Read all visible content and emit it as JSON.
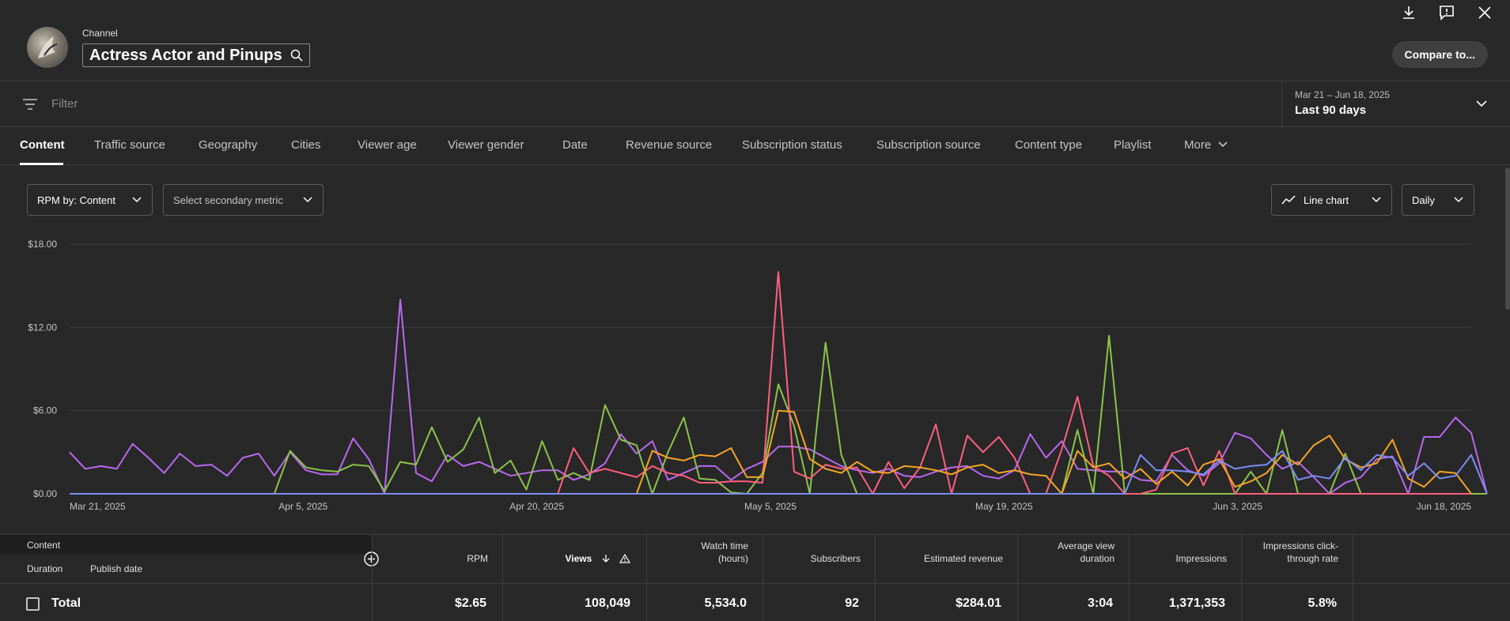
{
  "header": {
    "channel_label": "Channel",
    "channel_name": "Actress Actor and Pinups",
    "compare_button": "Compare to...",
    "icons": [
      "download-icon",
      "feedback-icon",
      "close-icon"
    ]
  },
  "filter": {
    "placeholder": "Filter",
    "date_range": "Mar 21 – Jun 18, 2025",
    "date_preset": "Last 90 days"
  },
  "tabs": [
    {
      "label": "Content",
      "active": true
    },
    {
      "label": "Traffic source"
    },
    {
      "label": "Geography"
    },
    {
      "label": "Cities"
    },
    {
      "label": "Viewer age"
    },
    {
      "label": "Viewer gender"
    },
    {
      "label": "Date"
    },
    {
      "label": "Revenue source"
    },
    {
      "label": "Subscription status"
    },
    {
      "label": "Subscription source"
    },
    {
      "label": "Content type"
    },
    {
      "label": "Playlist"
    },
    {
      "label": "More"
    }
  ],
  "controls": {
    "primary_metric": "RPM by: Content",
    "secondary_metric": "Select secondary metric",
    "chart_type": "Line chart",
    "granularity": "Daily"
  },
  "chart_data": {
    "type": "line",
    "x_tick_labels": [
      "Mar 21, 2025",
      "Apr 5, 2025",
      "Apr 20, 2025",
      "May 5, 2025",
      "May 19, 2025",
      "Jun 3, 2025",
      "Jun 18, 2025"
    ],
    "y_tick_labels": [
      "$0.00",
      "$6.00",
      "$12.00",
      "$18.00"
    ],
    "ylim": [
      0,
      18
    ],
    "grid": true,
    "num_days": 90,
    "series": [
      {
        "color": "#b968f0",
        "values": [
          3,
          1.8,
          2,
          1.8,
          3.6,
          2.6,
          1.5,
          2.9,
          2,
          2.1,
          1.3,
          2.6,
          2.9,
          1.3,
          3,
          1.7,
          1.4,
          1.4,
          4,
          2.5,
          0,
          14,
          1.5,
          0.9,
          2.8,
          2,
          2.3,
          1.8,
          1.3,
          1.5,
          1.7,
          1.7,
          1,
          1.4,
          2.2,
          4.3,
          2.9,
          3.8,
          1,
          1.5,
          2,
          2,
          1,
          1.8,
          2.3,
          3.4,
          3.4,
          3.2,
          2.6,
          2,
          1.7,
          1.5,
          1.8,
          1.3,
          1.2,
          1.6,
          1.9,
          2,
          1.3,
          1.1,
          1.7,
          4.3,
          2.6,
          3.8,
          1.8,
          1.7,
          1.6,
          1.6,
          1,
          0.9,
          2.8,
          1.7,
          1.3,
          2.2,
          4.4,
          4,
          2.8,
          1.8,
          2.3,
          1.2,
          0,
          0.8,
          1.2,
          2.5,
          2.7,
          0,
          4.1,
          4.1,
          5.5,
          4.4,
          0
        ]
      },
      {
        "color": "#8bc34a",
        "values": [
          0,
          0,
          0,
          0,
          0,
          0,
          0,
          0,
          0,
          0,
          0,
          0,
          0,
          0,
          3.1,
          1.9,
          1.7,
          1.6,
          2.1,
          2,
          0.2,
          2.3,
          2.1,
          4.8,
          2.3,
          3.2,
          5.5,
          1.5,
          2.4,
          0.3,
          3.8,
          1,
          1.5,
          1,
          6.4,
          3.9,
          3.5,
          0,
          3,
          5.5,
          1.1,
          1,
          0.1,
          0,
          1.5,
          7.9,
          4.9,
          0,
          10.9,
          2.8,
          0,
          0,
          0,
          0,
          0,
          0,
          0,
          0,
          0,
          0,
          0,
          0,
          0,
          0,
          4.6,
          0,
          11.4,
          0,
          0,
          0,
          0,
          0,
          0,
          0,
          0,
          1.6,
          0,
          4.6,
          0,
          0,
          0,
          2.9,
          0,
          0,
          0,
          0,
          0,
          0,
          0,
          0,
          0
        ]
      },
      {
        "color": "#ff5f7e",
        "values": [
          0,
          0,
          0,
          0,
          0,
          0,
          0,
          0,
          0,
          0,
          0,
          0,
          0,
          0,
          0,
          0,
          0,
          0,
          0,
          0,
          0,
          0,
          0,
          0,
          0,
          0,
          0,
          0,
          0,
          0,
          0,
          0,
          3.3,
          1.5,
          1.8,
          1.5,
          1.2,
          2,
          1.5,
          1.3,
          0.8,
          0.8,
          0.9,
          0.9,
          0.8,
          16,
          1.6,
          1.1,
          2.1,
          1.8,
          1.9,
          0,
          2.3,
          0.4,
          1.9,
          5,
          0,
          4.2,
          3,
          4.1,
          2.6,
          0,
          0,
          3.2,
          7,
          2,
          1.3,
          0,
          0,
          0.3,
          2.9,
          3.3,
          0.6,
          3.1,
          0,
          0,
          0,
          0,
          0,
          0,
          0,
          0,
          0,
          0,
          0,
          0,
          0,
          0,
          0,
          0
        ]
      },
      {
        "color": "#f5a623",
        "values": [
          0,
          0,
          0,
          0,
          0,
          0,
          0,
          0,
          0,
          0,
          0,
          0,
          0,
          0,
          0,
          0,
          0,
          0,
          0,
          0,
          0,
          0,
          0,
          0,
          0,
          0,
          0,
          0,
          0,
          0,
          0,
          0,
          0,
          0,
          0,
          0,
          0,
          3.1,
          2.6,
          2.4,
          2.8,
          2.7,
          3.3,
          1.2,
          1.2,
          6,
          5.9,
          2.5,
          1.8,
          1.5,
          2.3,
          1.6,
          1.5,
          2,
          1.9,
          1.7,
          1.4,
          1.9,
          2.1,
          1.5,
          1.7,
          1.4,
          1.3,
          0,
          3.1,
          1.9,
          2.2,
          1.1,
          1.8,
          0.7,
          1.6,
          0.6,
          2.1,
          2.5,
          0.5,
          0.9,
          1.5,
          2.8,
          2.1,
          3.5,
          4.2,
          2.5,
          1.9,
          2.2,
          3.9,
          1.1,
          0.5,
          1.6,
          1.5,
          0
        ]
      },
      {
        "color": "#7b8cf5",
        "values": [
          0,
          0,
          0,
          0,
          0,
          0,
          0,
          0,
          0,
          0,
          0,
          0,
          0,
          0,
          0,
          0,
          0,
          0,
          0,
          0,
          0,
          0,
          0,
          0,
          0,
          0,
          0,
          0,
          0,
          0,
          0,
          0,
          0,
          0,
          0,
          0,
          0,
          0,
          0,
          0,
          0,
          0,
          0,
          0,
          0,
          0,
          0,
          0,
          0,
          0,
          0,
          0,
          0,
          0,
          0,
          0,
          0,
          0,
          0,
          0,
          0,
          0,
          0,
          0,
          0,
          0,
          0,
          0,
          2.8,
          1.7,
          1.7,
          1.6,
          1.4,
          2.4,
          1.8,
          2,
          2.1,
          3.1,
          1,
          1.3,
          1.1,
          2.6,
          1.7,
          2.8,
          2.6,
          1.3,
          2.2,
          1.1,
          1.3,
          2.8,
          0
        ]
      }
    ]
  },
  "table": {
    "content_header": "Content",
    "sub_headers": [
      "Duration",
      "Publish date"
    ],
    "columns": [
      {
        "title": "RPM",
        "total": "$2.65"
      },
      {
        "title": "Views",
        "total": "108,049",
        "sorted": true
      },
      {
        "title": "Watch time (hours)",
        "total": "5,534.0"
      },
      {
        "title": "Subscribers",
        "total": "92"
      },
      {
        "title": "Estimated revenue",
        "total": "$284.01"
      },
      {
        "title": "Average view duration",
        "total": "3:04"
      },
      {
        "title": "Impressions",
        "total": "1,371,353"
      },
      {
        "title": "Impressions click-through rate",
        "total": "5.8%"
      }
    ],
    "total_label": "Total"
  }
}
